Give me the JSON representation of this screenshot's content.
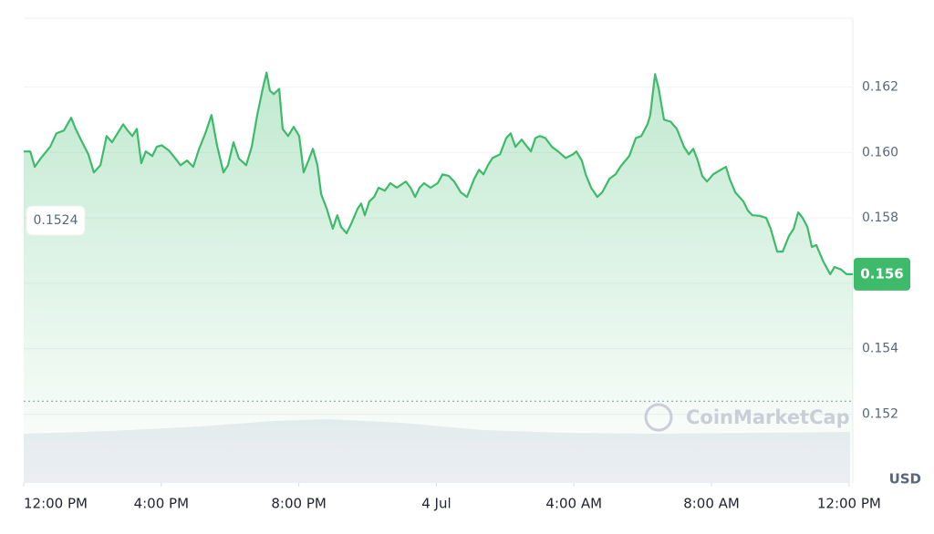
{
  "chart_data": {
    "type": "line",
    "unit_label": "USD",
    "watermark": "CoinMarketCap",
    "x": [
      0,
      0.19,
      0.32,
      0.5,
      0.77,
      0.95,
      1.17,
      1.38,
      1.51,
      1.7,
      1.88,
      2.04,
      2.23,
      2.41,
      2.57,
      2.76,
      2.89,
      3.02,
      3.16,
      3.29,
      3.42,
      3.55,
      3.74,
      3.87,
      4.01,
      4.22,
      4.4,
      4.56,
      4.75,
      4.93,
      5.09,
      5.28,
      5.46,
      5.62,
      5.81,
      5.94,
      6.1,
      6.26,
      6.47,
      6.63,
      6.79,
      6.95,
      7.06,
      7.16,
      7.27,
      7.43,
      7.53,
      7.69,
      7.85,
      8.01,
      8.14,
      8.28,
      8.41,
      8.54,
      8.65,
      8.81,
      8.99,
      9.12,
      9.23,
      9.39,
      9.52,
      9.71,
      9.81,
      9.92,
      10.05,
      10.19,
      10.32,
      10.5,
      10.66,
      10.85,
      11.11,
      11.25,
      11.38,
      11.51,
      11.64,
      11.83,
      12.04,
      12.18,
      12.36,
      12.52,
      12.71,
      12.89,
      13.1,
      13.24,
      13.37,
      13.5,
      13.63,
      13.85,
      14.03,
      14.16,
      14.3,
      14.48,
      14.64,
      14.75,
      14.88,
      15.01,
      15.17,
      15.36,
      15.54,
      15.76,
      15.97,
      16.07,
      16.23,
      16.34,
      16.5,
      16.68,
      16.82,
      17.03,
      17.21,
      17.35,
      17.61,
      17.8,
      17.96,
      18.14,
      18.22,
      18.36,
      18.46,
      18.62,
      18.81,
      18.99,
      19.2,
      19.34,
      19.47,
      19.6,
      19.73,
      19.87,
      20.05,
      20.27,
      20.42,
      20.53,
      20.69,
      20.93,
      21.06,
      21.19,
      21.41,
      21.59,
      21.72,
      21.91,
      22.07,
      22.25,
      22.39,
      22.52,
      22.65,
      22.79,
      22.92,
      23.05,
      23.24,
      23.45,
      23.58,
      23.77,
      23.93,
      24.11
    ],
    "series": [
      {
        "color": "#3dbb6b",
        "values": [
          0.16003,
          0.16003,
          0.15956,
          0.15983,
          0.16017,
          0.16058,
          0.16067,
          0.16106,
          0.16072,
          0.16031,
          0.15994,
          0.15939,
          0.15961,
          0.1605,
          0.16031,
          0.16064,
          0.16086,
          0.16067,
          0.1605,
          0.16072,
          0.15967,
          0.16003,
          0.15989,
          0.16017,
          0.16022,
          0.16006,
          0.15983,
          0.15961,
          0.15975,
          0.15956,
          0.16008,
          0.16058,
          0.16114,
          0.16022,
          0.15939,
          0.15961,
          0.16031,
          0.15981,
          0.15961,
          0.16017,
          0.16114,
          0.16194,
          0.16244,
          0.16189,
          0.16178,
          0.16194,
          0.16072,
          0.1605,
          0.16078,
          0.1605,
          0.15939,
          0.15975,
          0.16011,
          0.15961,
          0.15872,
          0.15828,
          0.15767,
          0.15808,
          0.15772,
          0.15753,
          0.15781,
          0.15828,
          0.15844,
          0.15808,
          0.1585,
          0.15864,
          0.15892,
          0.15883,
          0.15906,
          0.15892,
          0.15911,
          0.15892,
          0.15864,
          0.15892,
          0.15906,
          0.15892,
          0.15906,
          0.15933,
          0.15928,
          0.15911,
          0.15878,
          0.15864,
          0.15919,
          0.15947,
          0.15933,
          0.15961,
          0.15983,
          0.15994,
          0.16044,
          0.16058,
          0.16017,
          0.16039,
          0.16017,
          0.16003,
          0.16044,
          0.1605,
          0.16044,
          0.16017,
          0.16003,
          0.15983,
          0.15994,
          0.16003,
          0.15975,
          0.15933,
          0.15892,
          0.15864,
          0.15878,
          0.15919,
          0.15933,
          0.15956,
          0.15989,
          0.16044,
          0.1605,
          0.16086,
          0.16114,
          0.16239,
          0.16197,
          0.161,
          0.16094,
          0.16072,
          0.16017,
          0.15994,
          0.16011,
          0.15975,
          0.15928,
          0.15911,
          0.15933,
          0.15947,
          0.15956,
          0.15919,
          0.15878,
          0.1585,
          0.15822,
          0.15808,
          0.15806,
          0.158,
          0.15767,
          0.15697,
          0.15697,
          0.15744,
          0.15767,
          0.15817,
          0.158,
          0.15772,
          0.15711,
          0.15717,
          0.15669,
          0.15628,
          0.1565,
          0.15642,
          0.15628,
          0.15628
        ]
      }
    ],
    "xlim": [
      0,
      24.11
    ],
    "xticks": [
      {
        "value": 0,
        "label": "12:00 PM"
      },
      {
        "value": 4,
        "label": "4:00 PM"
      },
      {
        "value": 8,
        "label": "8:00 PM"
      },
      {
        "value": 12,
        "label": "4 Jul"
      },
      {
        "value": 16,
        "label": "4:00 AM"
      },
      {
        "value": 20,
        "label": "8:00 AM"
      },
      {
        "value": 24,
        "label": "12:00 PM"
      }
    ],
    "ylim": [
      0.1499,
      0.1641
    ],
    "yticks": [
      0.152,
      0.154,
      0.156,
      0.158,
      {
        "value": 0.16,
        "label": "0.160"
      },
      0.162
    ],
    "grid": true,
    "reference_line": 0.1524,
    "price_marker": {
      "value": 0.15628,
      "label": "0.156"
    }
  }
}
